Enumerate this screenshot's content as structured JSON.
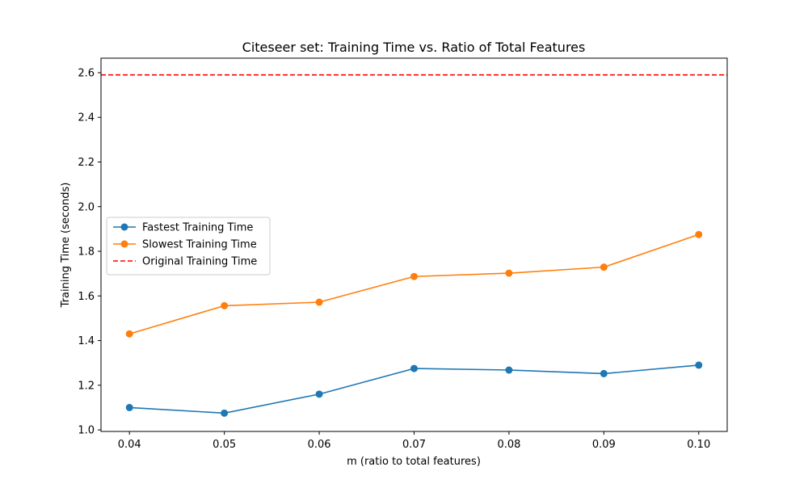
{
  "chart_data": {
    "type": "line",
    "title": "Citeseer set: Training Time vs. Ratio of Total Features",
    "xlabel": "m (ratio to total features)",
    "ylabel": "Training Time (seconds)",
    "x": [
      0.04,
      0.05,
      0.06,
      0.07,
      0.08,
      0.09,
      0.1
    ],
    "x_tick_labels": [
      "0.04",
      "0.05",
      "0.06",
      "0.07",
      "0.08",
      "0.09",
      "0.10"
    ],
    "y_ticks": [
      1.0,
      1.2,
      1.4,
      1.6,
      1.8,
      2.0,
      2.2,
      2.4,
      2.6
    ],
    "y_tick_labels": [
      "1.0",
      "1.2",
      "1.4",
      "1.6",
      "1.8",
      "2.0",
      "2.2",
      "2.4",
      "2.6"
    ],
    "xlim": [
      0.037,
      0.103
    ],
    "ylim": [
      0.993,
      2.665
    ],
    "grid": false,
    "legend_position": "center-left",
    "series": [
      {
        "name": "Fastest Training Time",
        "color": "#1f77b4",
        "style": "solid",
        "marker": "circle",
        "values": [
          1.1,
          1.075,
          1.16,
          1.275,
          1.268,
          1.252,
          1.29
        ]
      },
      {
        "name": "Slowest Training Time",
        "color": "#ff7f0e",
        "style": "solid",
        "marker": "circle",
        "values": [
          1.43,
          1.556,
          1.572,
          1.687,
          1.702,
          1.729,
          1.875
        ]
      }
    ],
    "reference_lines": [
      {
        "name": "Original Training Time",
        "color": "#ff0000",
        "style": "dashed",
        "y": 2.59
      }
    ]
  }
}
